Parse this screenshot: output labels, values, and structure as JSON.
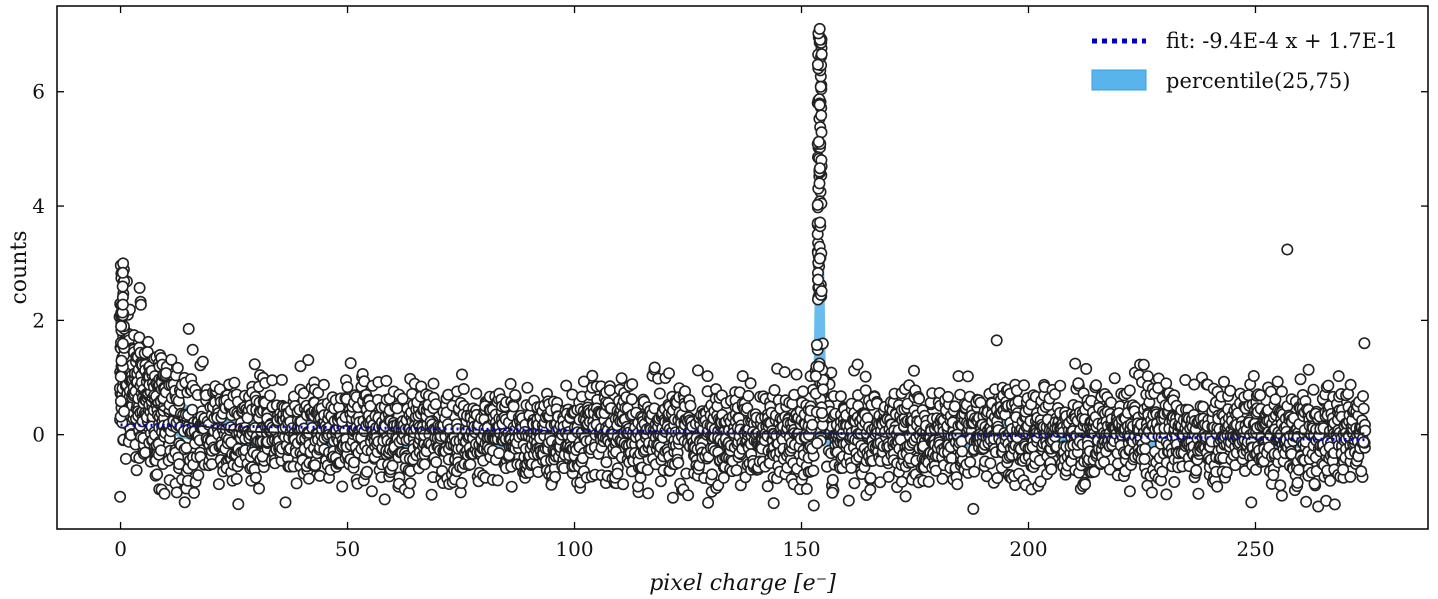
{
  "chart_data": {
    "type": "scatter",
    "xlabel": "pixel charge [e⁻]",
    "ylabel": "counts",
    "xlim": [
      -14,
      288
    ],
    "ylim": [
      -1.65,
      7.5
    ],
    "xticks": [
      0,
      50,
      100,
      150,
      200,
      250
    ],
    "xtick_labels": [
      "0",
      "50",
      "100",
      "150",
      "200",
      "250"
    ],
    "yticks": [
      0,
      2,
      4,
      6
    ],
    "ytick_labels": [
      "0",
      "2",
      "4",
      "6"
    ],
    "tick_direction": "in",
    "grid": false,
    "legend_position": "top-right",
    "legend": [
      {
        "label": "fit: -9.4E-4 x + 1.7E-1",
        "style": "dotted-line",
        "color": "#0000c8"
      },
      {
        "label": "percentile(25,75)",
        "style": "filled-band",
        "color": "#5ab4ec"
      }
    ],
    "fit": {
      "slope": -0.00094,
      "intercept": 0.17,
      "x_range": [
        0,
        274
      ],
      "color": "#0000c8"
    },
    "percentile_band": {
      "color": "#5ab4ec",
      "x_range": [
        0,
        274
      ],
      "peak_x": 154,
      "peak_upper": 3.0
    },
    "scatter_style": {
      "marker": "circle",
      "face_color": "#ffffff",
      "edge_color": "#222222"
    },
    "scatter_summary": {
      "x_range": [
        0,
        274
      ],
      "baseline_spread": [
        -1.3,
        1.3
      ],
      "start_values_at_x0": [
        0.2,
        3.0
      ],
      "spike_x": 154,
      "spike_max": 7.1,
      "outlier_points": [
        {
          "x": 257,
          "y": 3.24
        },
        {
          "x": 193,
          "y": 1.65
        },
        {
          "x": 15,
          "y": 1.85
        },
        {
          "x": 274,
          "y": 1.6
        }
      ]
    }
  }
}
